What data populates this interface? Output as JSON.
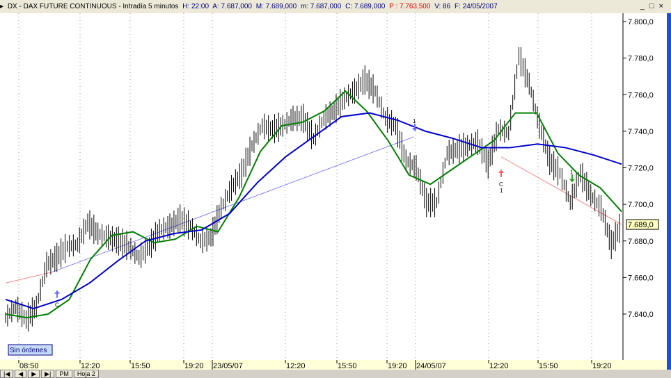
{
  "header": {
    "symbol": "DX - DAX FUTURE CONTINUOUS - Intradía 5 minutos",
    "h": "H: 22:00",
    "a": "A: 7.687,000",
    "m": "M: 7.689,000",
    "mn": "m: 7.687,000",
    "c": "C: 7.689,000",
    "p": "P : 7.763,500",
    "v": "V: 86",
    "f": "F: 24/05/2007",
    "win_buttons": "_ □ ×"
  },
  "status_label": "Sin órdenes",
  "tabs": [
    "|◀",
    "◀",
    "▶",
    "▶|",
    "PM",
    "Hoja 2"
  ],
  "colors": {
    "price": "#000000",
    "ma_fast": "#008000",
    "ma_slow": "#0000cc",
    "trend_up": "#6666ff",
    "trend_down": "#ff6666",
    "last_price_bg": "#ffffc0",
    "time_axis_bg": "#ffffd8"
  },
  "chart_data": {
    "type": "line",
    "title": "",
    "ylim": [
      7625,
      7805
    ],
    "y_ticks": [
      "7.800,0",
      "7.780,0",
      "7.760,0",
      "7.740,0",
      "7.720,0",
      "7.700,0",
      "7.680,0",
      "7.660,0",
      "7.640,0"
    ],
    "y_tick_values": [
      7800,
      7780,
      7760,
      7740,
      7720,
      7700,
      7680,
      7660,
      7640
    ],
    "x_ticks": [
      "08:50",
      "12:20",
      "15:50",
      "19:20",
      "23/05/07",
      "12:20",
      "15:50",
      "19:20",
      "24/05/07",
      "12:20",
      "15:50",
      "19:20"
    ],
    "last_price_label": "7.689,0",
    "last_price": 7689,
    "grid": "vertical dotted",
    "series": [
      {
        "key": "price",
        "values": [
          7638,
          7644,
          7637,
          7644,
          7667,
          7671,
          7677,
          7678,
          7690,
          7684,
          7682,
          7680,
          7677,
          7671,
          7677,
          7686,
          7688,
          7692,
          7688,
          7680,
          7682,
          7698,
          7709,
          7717,
          7732,
          7743,
          7741,
          7743,
          7747,
          7747,
          7736,
          7747,
          7751,
          7758,
          7762,
          7768,
          7762,
          7747,
          7743,
          7724,
          7720,
          7701,
          7701,
          7728,
          7730,
          7732,
          7734,
          7722,
          7741,
          7739,
          7781,
          7766,
          7743,
          7724,
          7717,
          7701,
          7717,
          7705,
          7698,
          7678,
          7689
        ]
      },
      {
        "key": "ma_fast",
        "values": [
          7640,
          7638,
          7640,
          7648,
          7670,
          7683,
          7685,
          7679,
          7681,
          7688,
          7685,
          7704,
          7729,
          7743,
          7745,
          7751,
          7762,
          7751,
          7735,
          7716,
          7711,
          7719,
          7727,
          7735,
          7750,
          7750,
          7728,
          7716,
          7709,
          7696
        ]
      },
      {
        "key": "ma_slow",
        "values": [
          7648,
          7643,
          7648,
          7657,
          7669,
          7680,
          7684,
          7686,
          7695,
          7712,
          7726,
          7737,
          7748,
          7750,
          7746,
          7740,
          7736,
          7731,
          7731,
          7733,
          7731,
          7727,
          7722
        ]
      }
    ],
    "signals": [
      {
        "type": "buy",
        "label": "C"
      },
      {
        "type": "sell",
        "label": "1"
      },
      {
        "type": "buy",
        "label": "C",
        "sub": "1"
      },
      {
        "type": "sell",
        "label": "1"
      }
    ]
  }
}
